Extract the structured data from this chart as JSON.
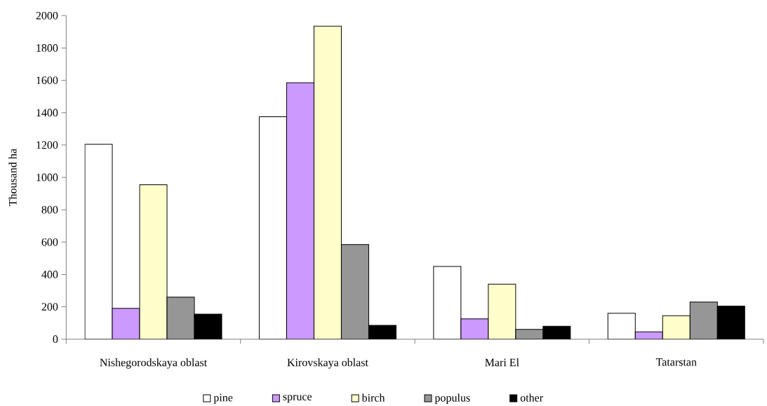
{
  "chart_data": {
    "type": "bar",
    "ylabel": "Thousand ha",
    "categories": [
      "Nishegorodskaya oblast",
      "Kirovskaya oblast",
      "Mari El",
      "Tatarstan"
    ],
    "series": [
      {
        "name": "pine",
        "color": "#ffffff",
        "values": [
          1205,
          1375,
          450,
          160
        ]
      },
      {
        "name": "spruce",
        "color": "#cc99ff",
        "values": [
          190,
          1585,
          125,
          45
        ]
      },
      {
        "name": "birch",
        "color": "#ffffcc",
        "values": [
          955,
          1935,
          340,
          145
        ]
      },
      {
        "name": "populus",
        "color": "#969696",
        "values": [
          260,
          585,
          60,
          230
        ]
      },
      {
        "name": "other",
        "color": "#000000",
        "values": [
          155,
          85,
          80,
          205
        ]
      }
    ],
    "ylim": [
      0,
      2000
    ],
    "yticks": [
      0,
      200,
      400,
      600,
      800,
      1000,
      1200,
      1400,
      1600,
      1800,
      2000
    ],
    "legend": "bottom"
  }
}
